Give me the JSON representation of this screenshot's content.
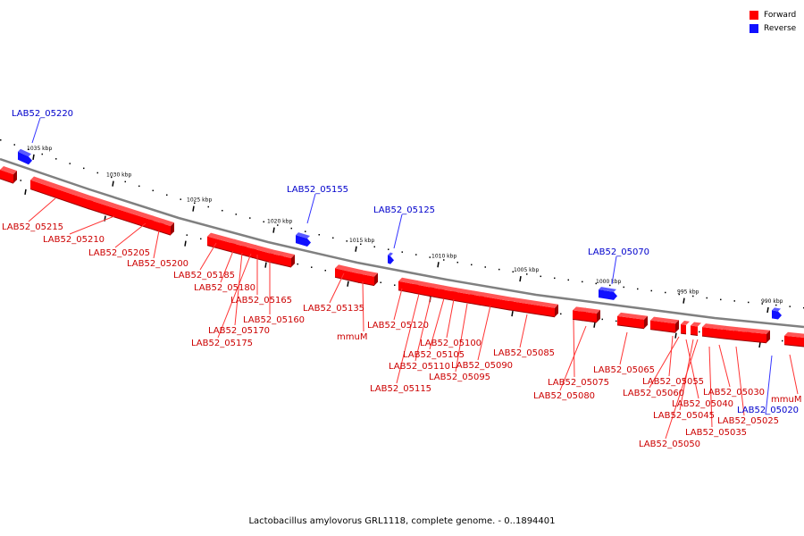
{
  "caption": "Lactobacillus amylovorus GRL1118, complete genome. - 0..1894401",
  "legend": [
    {
      "label": "Forward",
      "color": "#ff0000"
    },
    {
      "label": "Reverse",
      "color": "#1010ff"
    }
  ],
  "colors": {
    "forward": "#ff0000",
    "forward_top": "#ff5555",
    "forward_dark": "#990000",
    "reverse": "#1010ff",
    "reverse_top": "#5a5aff",
    "backbone": "#808080",
    "forward_label": "#cc0000",
    "reverse_label": "#0000cc"
  },
  "scale_labels": [
    "1035 kbp",
    "1030 kbp",
    "1025 kbp",
    "1020 kbp",
    "1015 kbp",
    "1010 kbp",
    "1005 kbp",
    "1000 kbp",
    "995 kbp",
    "990 kbp"
  ],
  "reverse_labels": [
    "LAB52_05220",
    "LAB52_05155",
    "LAB52_05125",
    "LAB52_05070",
    "LAB52_05020"
  ],
  "forward_labels": [
    "LAB52_05215",
    "LAB52_05210",
    "LAB52_05205",
    "LAB52_05200",
    "LAB52_05185",
    "LAB52_05180",
    "LAB52_05165",
    "LAB52_05160",
    "LAB52_05170",
    "LAB52_05175",
    "LAB52_05135",
    "mmuM",
    "LAB52_05120",
    "LAB52_05100",
    "LAB52_05105",
    "LAB52_05110",
    "LAB52_05115",
    "LAB52_05090",
    "LAB52_05095",
    "LAB52_05085",
    "LAB52_05075",
    "LAB52_05080",
    "LAB52_05065",
    "LAB52_05055",
    "LAB52_05060",
    "LAB52_05040",
    "LAB52_05045",
    "LAB52_05050",
    "LAB52_05030",
    "LAB52_05025",
    "LAB52_05035",
    "mmuM"
  ]
}
